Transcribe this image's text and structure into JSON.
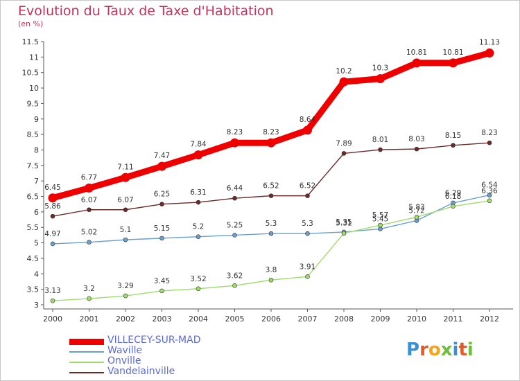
{
  "header": {
    "title": "Evolution du Taux de Taxe d'Habitation",
    "subtitle": "(en %)"
  },
  "logo": {
    "text": "Proxiti",
    "colors": [
      "#3a8fd6",
      "#e25a2a",
      "#f2a51a",
      "#6cbf3c",
      "#3a8fd6",
      "#e25a2a",
      "#6cbf3c"
    ]
  },
  "chart_data": {
    "type": "line",
    "title": "Evolution du Taux de Taxe d'Habitation",
    "subtitle": "(en %)",
    "x": [
      "2000",
      "2001",
      "2002",
      "2003",
      "2004",
      "2005",
      "2006",
      "2007",
      "2008",
      "2009",
      "2010",
      "2011",
      "2012"
    ],
    "ylim": [
      3,
      11.5
    ],
    "yticks": [
      "3",
      "3.5",
      "4",
      "4.5",
      "5",
      "5.5",
      "6",
      "6.5",
      "7",
      "7.5",
      "8",
      "8.5",
      "9",
      "9.5",
      "10",
      "10.5",
      "11",
      "11.5"
    ],
    "grid": false,
    "legend_position": "bottom-left",
    "series": [
      {
        "name": "VILLECEY-SUR-MAD",
        "color": "#ee0000",
        "values": [
          6.45,
          6.77,
          7.11,
          7.47,
          7.84,
          8.23,
          8.23,
          8.64,
          10.2,
          10.3,
          10.81,
          10.81,
          11.13
        ],
        "labels": [
          "6.45",
          "6.77",
          "7.11",
          "7.47",
          "7.84",
          "8.23",
          "8.23",
          "8.64",
          "10.2",
          "10.3",
          "10.81",
          "10.81",
          "11.13"
        ]
      },
      {
        "name": "Waville",
        "color": "#6a9fd0",
        "values": [
          4.97,
          5.02,
          5.1,
          5.15,
          5.2,
          5.25,
          5.3,
          5.3,
          5.35,
          5.45,
          5.72,
          6.29,
          6.54
        ],
        "labels": [
          "4.97",
          "5.02",
          "5.1",
          "5.15",
          "5.2",
          "5.25",
          "5.3",
          "5.3",
          "5.35",
          "5.45",
          "5.72",
          "6.29",
          "6.54"
        ]
      },
      {
        "name": "Onville",
        "color": "#9fdc6a",
        "values": [
          3.13,
          3.2,
          3.29,
          3.45,
          3.52,
          3.62,
          3.8,
          3.91,
          5.31,
          5.57,
          5.83,
          6.18,
          6.36
        ],
        "labels": [
          "3.13",
          "3.2",
          "3.29",
          "3.45",
          "3.52",
          "3.62",
          "3.8",
          "3.91",
          "5.31",
          "5.57",
          "5.83",
          "6.18",
          "6.36"
        ]
      },
      {
        "name": "Vandelainville",
        "color": "#6b2a2a",
        "values": [
          5.86,
          6.07,
          6.07,
          6.25,
          6.31,
          6.44,
          6.52,
          6.52,
          7.89,
          8.01,
          8.03,
          8.15,
          8.23
        ],
        "labels": [
          "5.86",
          "6.07",
          "6.07",
          "6.25",
          "6.31",
          "6.44",
          "6.52",
          "6.52",
          "7.89",
          "8.01",
          "8.03",
          "8.15",
          "8.23"
        ]
      }
    ]
  }
}
